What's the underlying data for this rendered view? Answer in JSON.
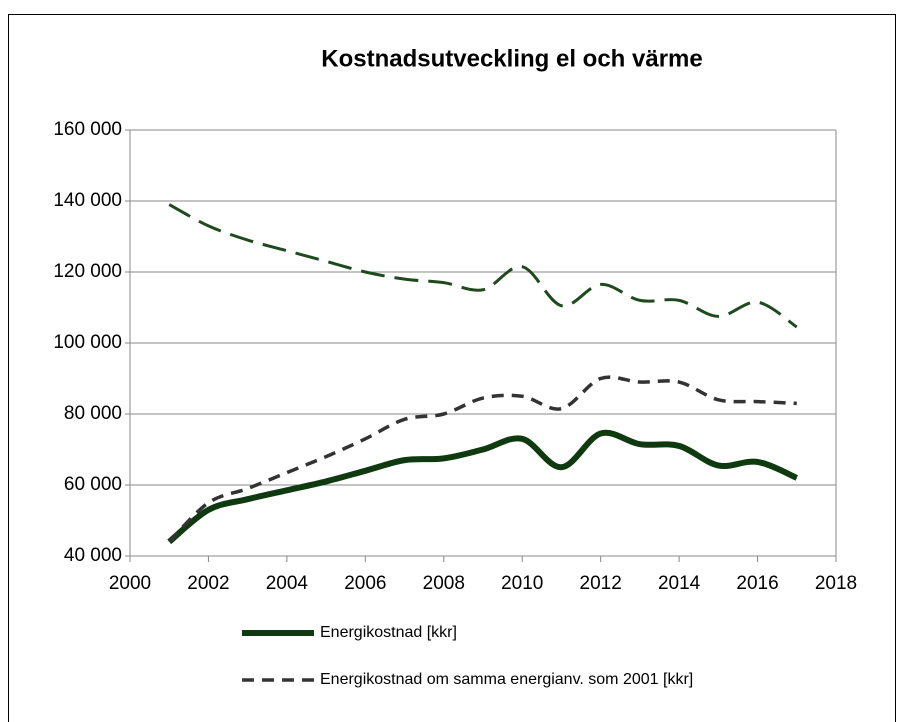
{
  "chart_data": {
    "type": "line",
    "title": "Kostnadsutveckling el och värme",
    "x": [
      2001,
      2002,
      2003,
      2004,
      2005,
      2006,
      2007,
      2008,
      2009,
      2010,
      2011,
      2012,
      2013,
      2014,
      2015,
      2016,
      2017
    ],
    "series": [
      {
        "name": "Energikostnad [kkr]",
        "color": "#0f3a10",
        "dash": "solid",
        "values": [
          44000,
          53000,
          56000,
          58500,
          61000,
          64000,
          67000,
          67500,
          70000,
          73000,
          65000,
          74500,
          71500,
          71000,
          65500,
          66500,
          62000
        ]
      },
      {
        "name": "Energikostnad om samma energianv. som 2001 [kkr]",
        "color": "#333333",
        "dash": "dashed",
        "values": [
          44000,
          55000,
          59000,
          63500,
          68000,
          73000,
          78500,
          80000,
          84500,
          85000,
          81500,
          90000,
          89000,
          89000,
          84000,
          83500,
          83000
        ]
      },
      {
        "color": "#1e4a1e",
        "dash": "dashed",
        "values": [
          139000,
          133000,
          129000,
          126000,
          123000,
          120000,
          118000,
          117000,
          115000,
          121500,
          110500,
          116500,
          112000,
          112000,
          107500,
          111500,
          104500
        ]
      }
    ],
    "xlim": [
      2000,
      2018
    ],
    "xticks": [
      2000,
      2002,
      2004,
      2006,
      2008,
      2010,
      2012,
      2014,
      2016,
      2018
    ],
    "ylim": [
      40000,
      160000
    ],
    "yticks": [
      {
        "value": 40000,
        "label": "40 000"
      },
      {
        "value": 60000,
        "label": "60 000"
      },
      {
        "value": 80000,
        "label": "80 000"
      },
      {
        "value": 100000,
        "label": "100 000"
      },
      {
        "value": 120000,
        "label": "120 000"
      },
      {
        "value": 140000,
        "label": "140 000"
      },
      {
        "value": 160000,
        "label": "160 000"
      }
    ],
    "grid": true
  }
}
